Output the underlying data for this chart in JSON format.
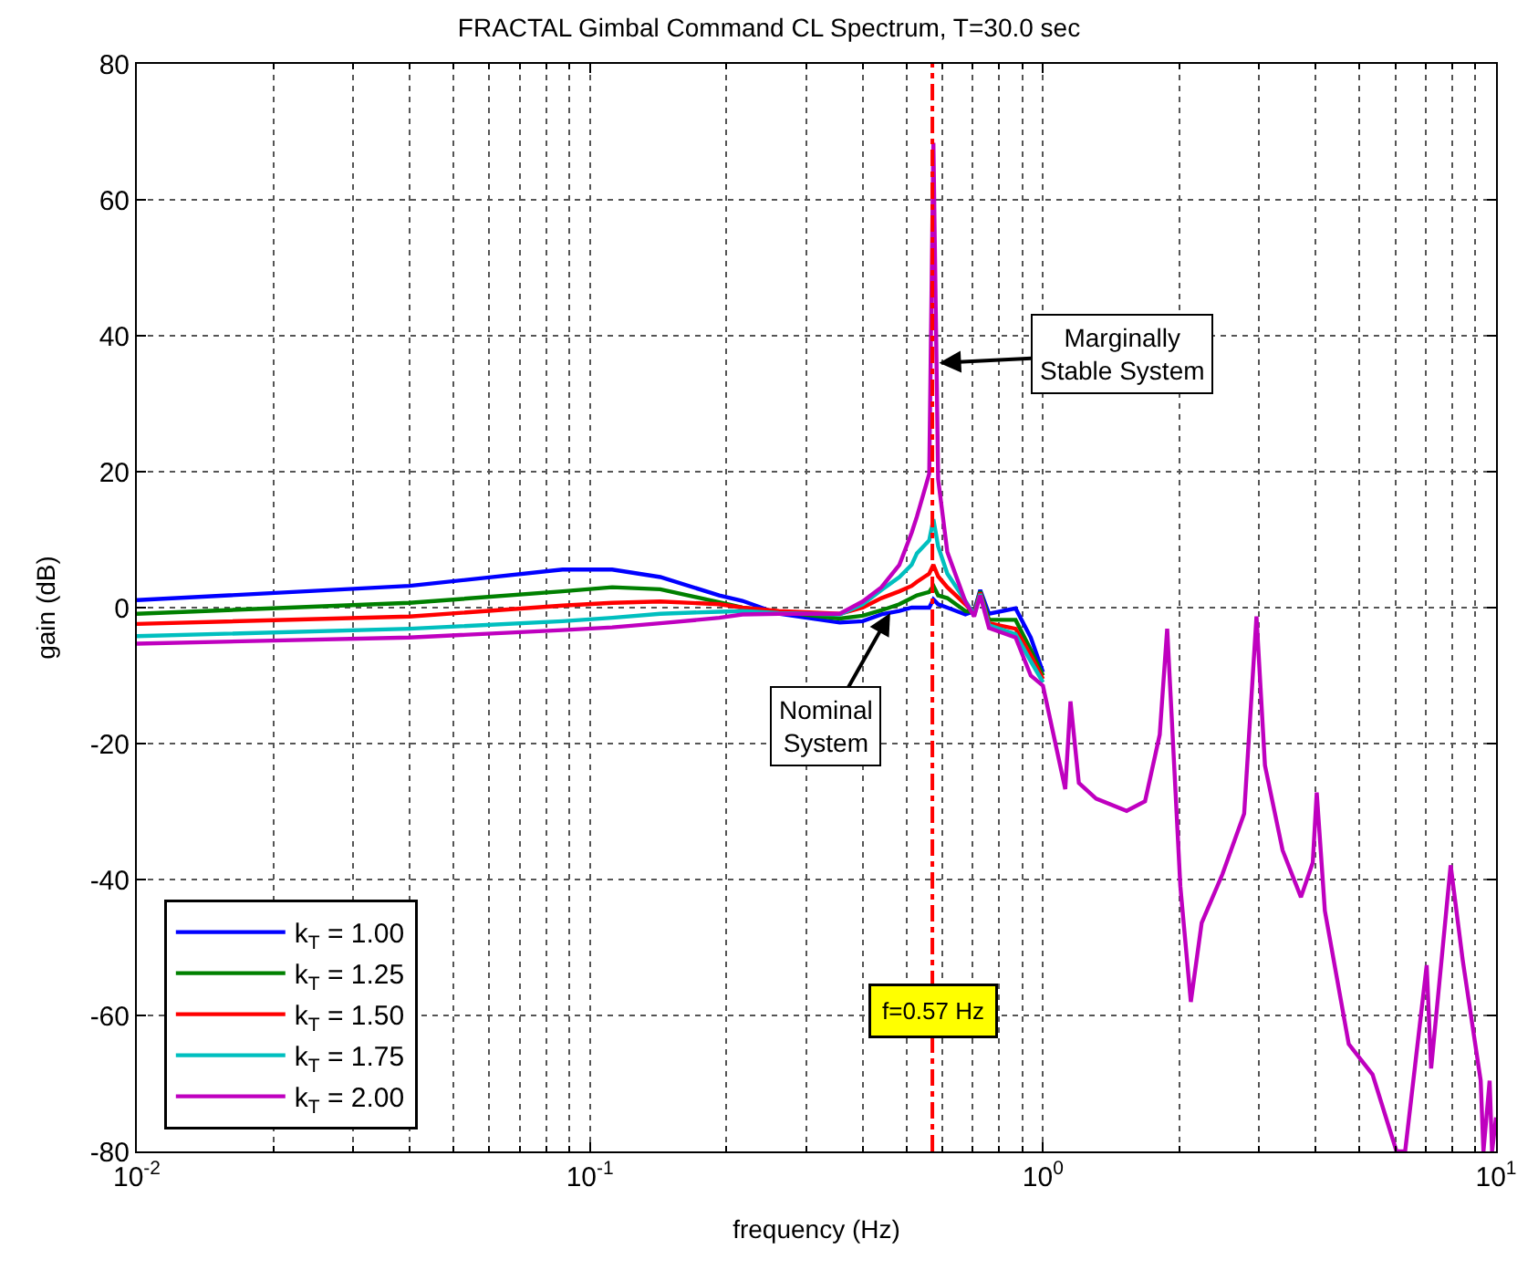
{
  "chart_data": {
    "type": "line",
    "title": "FRACTAL Gimbal Command CL Spectrum, T=30.0 sec",
    "xlabel": "frequency (Hz)",
    "ylabel": "gain (dB)",
    "log": "x",
    "grid": true,
    "legend": "bottom left",
    "line_style": "solid",
    "marker": "none",
    "xlim": [
      0.01,
      10
    ],
    "xticks": [
      {
        "value": 0.01,
        "label": "10$^{-2}$"
      },
      {
        "value": 0.1,
        "label": "10$^{-1}$"
      },
      {
        "value": 1,
        "label": "10$^{0}$"
      },
      {
        "value": 10,
        "label": "10$^{1}$"
      }
    ],
    "ylim": [
      -80,
      80
    ],
    "yticks": [
      -80,
      -60,
      -40,
      -20,
      0,
      20,
      40,
      60,
      80
    ],
    "x": [
      0.01,
      0.04,
      0.087,
      0.112,
      0.143,
      0.193,
      0.217,
      0.261,
      0.356,
      0.4,
      0.44,
      0.482,
      0.513,
      0.527,
      0.561,
      0.573,
      0.587,
      0.615,
      0.674,
      0.705,
      0.727,
      0.76,
      0.87,
      0.94,
      1.0,
      1.12,
      1.15,
      1.2,
      1.31,
      1.53,
      1.68,
      1.81,
      1.88,
      2.01,
      2.12,
      2.24,
      2.49,
      2.78,
      2.96,
      3.09,
      3.38,
      3.71,
      3.94,
      4.02,
      4.19,
      4.73,
      5.34,
      6.03,
      6.3,
      7.03,
      7.19,
      7.94,
      8.44,
      9.25,
      9.38,
      9.68,
      9.8,
      10
    ],
    "series": [
      {
        "name": "k$_{T}$ = 1.00",
        "color": "#0000ff",
        "values": [
          1.1,
          3.2,
          5.6,
          5.6,
          4.5,
          1.8,
          1.0,
          -0.9,
          -2.2,
          -2.0,
          -1.0,
          -0.5,
          0.0,
          0.0,
          0.0,
          1.2,
          0.5,
          0.0,
          -1.0,
          -0.5,
          2.6,
          -0.9,
          -0.1,
          -4.4,
          -9.5,
          null,
          null,
          null,
          null,
          null,
          null,
          null,
          null,
          null,
          null,
          null,
          null,
          null,
          null,
          null,
          null,
          null,
          null,
          null,
          null,
          null,
          null,
          null,
          null,
          null,
          null,
          null,
          null,
          null,
          null,
          null,
          null,
          null
        ]
      },
      {
        "name": "k$_{T}$ = 1.25",
        "color": "#008000",
        "values": [
          -0.9,
          0.7,
          2.4,
          3.0,
          2.7,
          0.8,
          0.0,
          -0.6,
          -1.6,
          -1.2,
          -0.4,
          0.5,
          1.4,
          1.8,
          2.3,
          3.2,
          1.8,
          1.4,
          -0.5,
          -0.7,
          2.4,
          -1.8,
          -1.8,
          -6.2,
          -10.0,
          null,
          null,
          null,
          null,
          null,
          null,
          null,
          null,
          null,
          null,
          null,
          null,
          null,
          null,
          null,
          null,
          null,
          null,
          null,
          null,
          null,
          null,
          null,
          null,
          null,
          null,
          null,
          null,
          null,
          null,
          null,
          null,
          null
        ]
      },
      {
        "name": "k$_{T}$ = 1.50",
        "color": "#ff0000",
        "values": [
          -2.4,
          -1.3,
          0.3,
          0.7,
          0.9,
          0.5,
          0.0,
          -0.5,
          -0.9,
          0.0,
          1.4,
          2.4,
          3.2,
          3.8,
          5.0,
          6.3,
          4.6,
          3.0,
          0.5,
          -0.9,
          2.2,
          -2.3,
          -3.1,
          -7.0,
          -10.5,
          null,
          null,
          null,
          null,
          null,
          null,
          null,
          null,
          null,
          null,
          null,
          null,
          null,
          null,
          null,
          null,
          null,
          null,
          null,
          null,
          null,
          null,
          null,
          null,
          null,
          null,
          null,
          null,
          null,
          null,
          null,
          null,
          null
        ]
      },
      {
        "name": "k$_{T}$ = 1.75",
        "color": "#00bfbf",
        "values": [
          -4.2,
          -3.1,
          -2.0,
          -1.5,
          -0.9,
          -0.6,
          -0.5,
          -0.8,
          -1.0,
          0.5,
          2.6,
          4.5,
          6.3,
          8.0,
          9.9,
          13.0,
          9.0,
          5.0,
          1.0,
          -1.1,
          2.0,
          -2.6,
          -3.9,
          -7.9,
          -11.0,
          null,
          null,
          null,
          null,
          null,
          null,
          null,
          null,
          null,
          null,
          null,
          null,
          null,
          null,
          null,
          null,
          null,
          null,
          null,
          null,
          null,
          null,
          null,
          null,
          null,
          null,
          null,
          null,
          null,
          null,
          null,
          null,
          null
        ]
      },
      {
        "name": "k$_{T}$ = 2.00",
        "color": "#bf00bf",
        "values": [
          -5.3,
          -4.4,
          -3.3,
          -2.9,
          -2.3,
          -1.5,
          -1.0,
          -0.9,
          -0.9,
          0.9,
          3.0,
          6.3,
          11.0,
          13.4,
          19.7,
          68.4,
          18.9,
          8.2,
          0.9,
          -1.3,
          1.8,
          -3.0,
          -4.4,
          -10.0,
          -11.5,
          -26.7,
          -13.8,
          -25.8,
          -28.1,
          -29.9,
          -28.5,
          -18.7,
          -3.1,
          -41,
          -58,
          -46.4,
          -39.2,
          -30.3,
          -1.3,
          -23.2,
          -35.7,
          -42.6,
          -37.5,
          -27.2,
          -44.6,
          -64.2,
          -68.7,
          -80,
          -80,
          -52.6,
          -67.8,
          -37.9,
          -51.8,
          -69.6,
          -80,
          -69.6,
          -80,
          -75
        ]
      }
    ],
    "ref_lines": [
      {
        "axis": "x",
        "value": 0.57,
        "label": "f=0.57 Hz",
        "color": "#ff0000",
        "line_style": "dashed"
      }
    ],
    "annotations": [
      {
        "text": "Marginally\nStable System",
        "x": 0.59,
        "y": 36
      },
      {
        "text": "Nominal\nSystem",
        "x": 0.46,
        "y": -0.8
      }
    ]
  }
}
